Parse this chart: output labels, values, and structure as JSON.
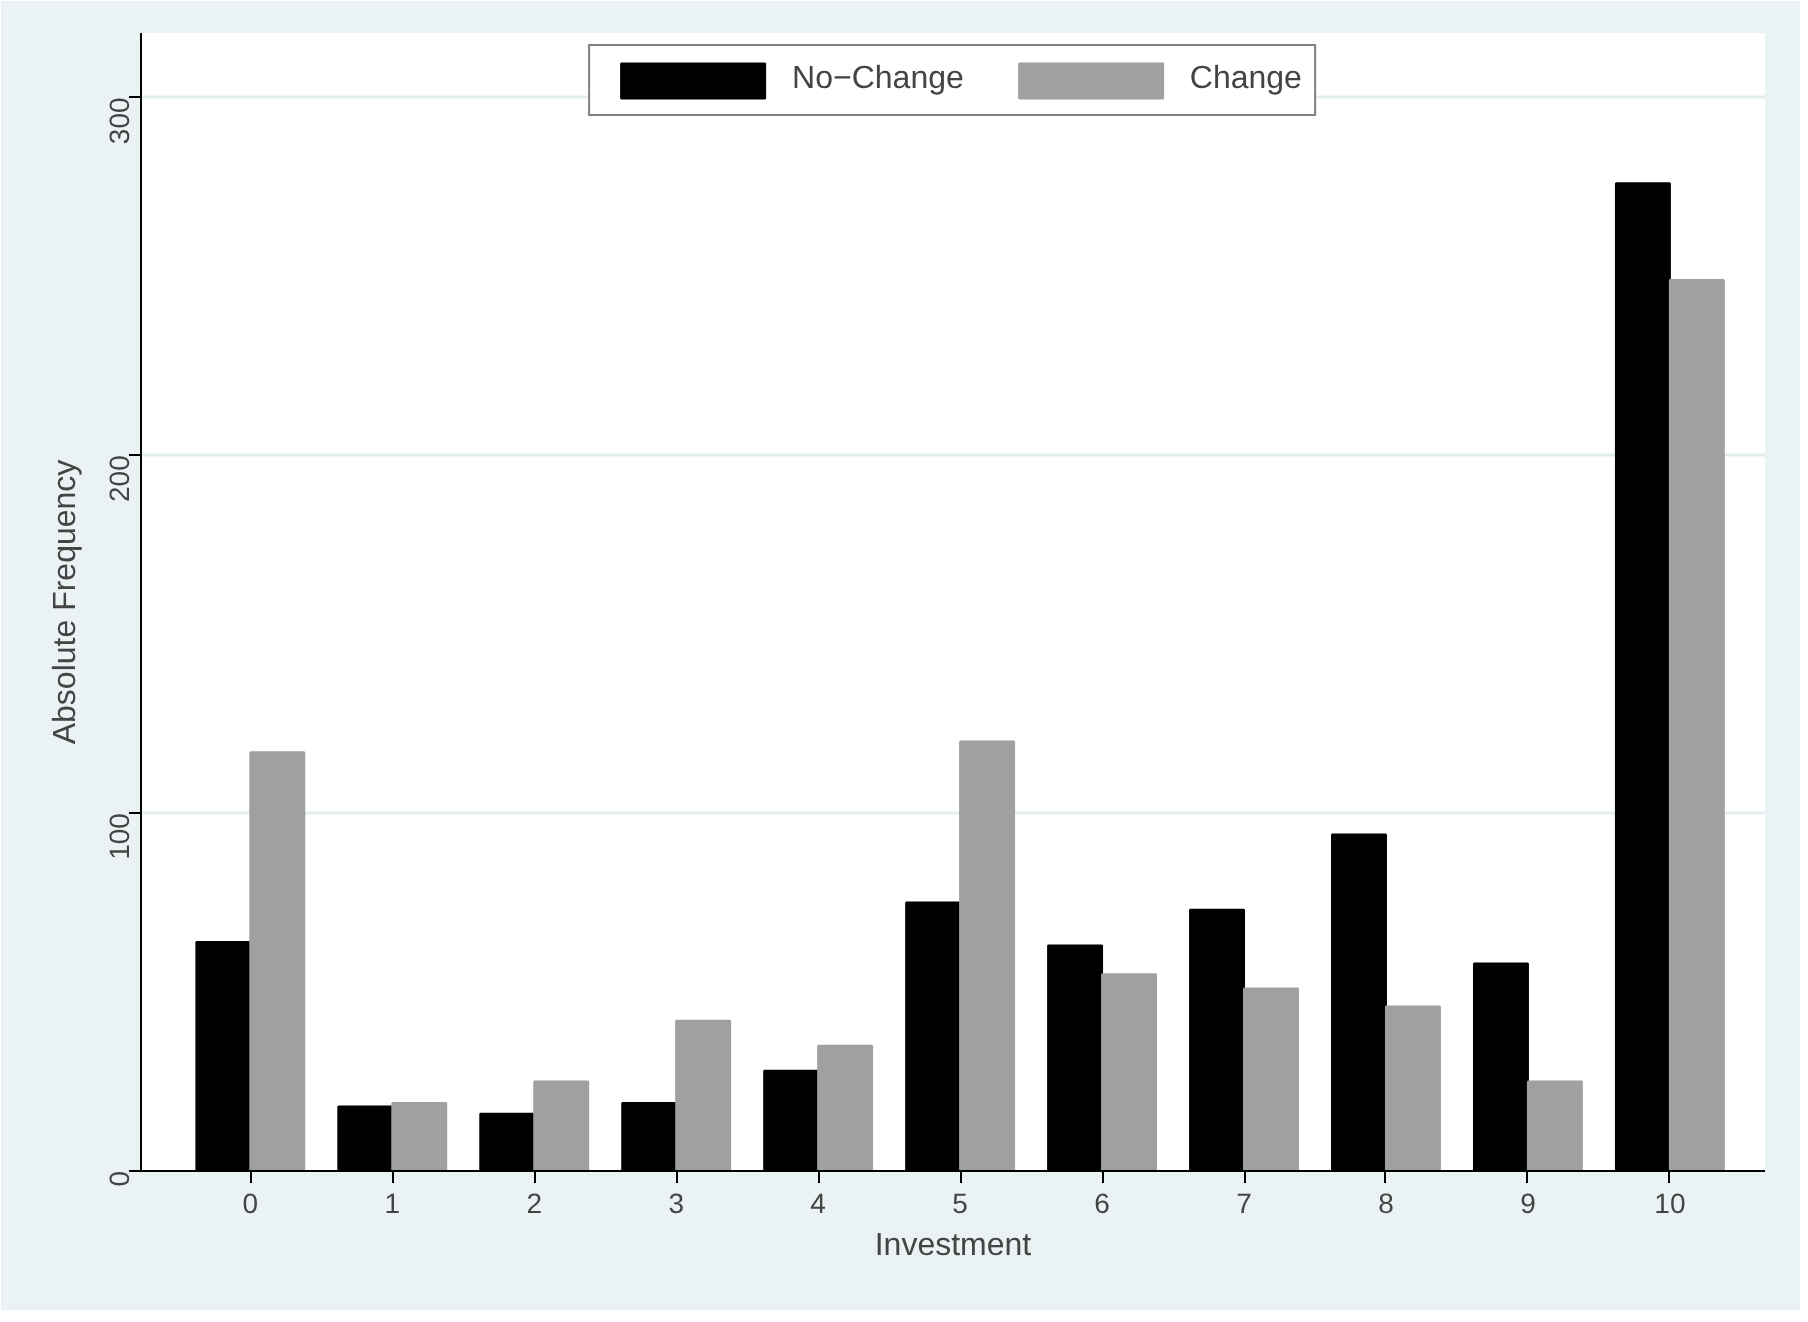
{
  "chart_data": {
    "type": "bar",
    "xlabel": "Investment",
    "ylabel": "Absolute Frequency",
    "categories": [
      "0",
      "1",
      "2",
      "3",
      "4",
      "5",
      "6",
      "7",
      "8",
      "9",
      "10"
    ],
    "series": [
      {
        "name": "No−Change",
        "color": "#000000",
        "values": [
          64,
          18,
          16,
          19,
          28,
          75,
          63,
          73,
          94,
          58,
          276
        ]
      },
      {
        "name": "Change",
        "color": "#a0a0a0",
        "values": [
          117,
          19,
          25,
          42,
          35,
          120,
          55,
          51,
          46,
          25,
          249
        ]
      }
    ],
    "ylim": [
      0,
      318
    ],
    "yticks": [
      0,
      100,
      200,
      300
    ],
    "grid": "y",
    "legend": "top"
  }
}
